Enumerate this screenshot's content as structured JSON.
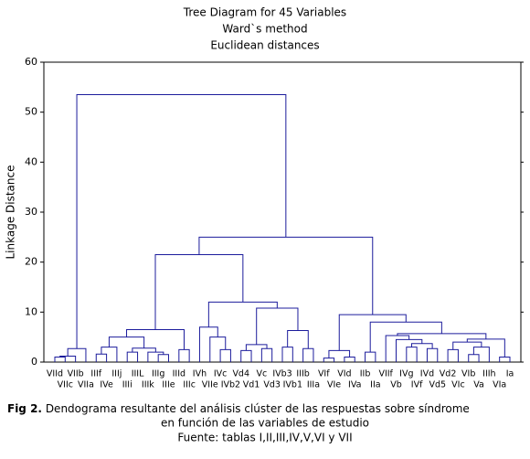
{
  "chart_data": {
    "type": "dendrogram",
    "title": [
      "Tree Diagram for 45  Variables",
      "Ward`s method",
      "Euclidean distances"
    ],
    "y_label": "Linkage Distance",
    "ylim": [
      0,
      60
    ],
    "yticks": [
      0,
      10,
      20,
      30,
      40,
      50,
      60
    ],
    "color": "#1c1c9c",
    "leaves": [
      "VIId",
      "VIIc",
      "VIIb",
      "VIIa",
      "IIIf",
      "IVe",
      "IIIj",
      "IIIi",
      "IIIL",
      "IIIk",
      "IIIg",
      "IIIe",
      "IIId",
      "IIIc",
      "IVh",
      "VIIe",
      "IVc",
      "IVb2",
      "Vd4",
      "Vd1",
      "Vc",
      "Vd3",
      "IVb3",
      "IVb1",
      "IIIb",
      "IIIa",
      "VIf",
      "VIe",
      "VId",
      "IVa",
      "IIb",
      "IIa",
      "VIIf",
      "Vb",
      "IVg",
      "IVf",
      "IVd",
      "Vd5",
      "Vd2",
      "VIc",
      "VIb",
      "Va",
      "IIIh",
      "VIa",
      "Ia"
    ],
    "merges": [
      {
        "left": 0,
        "right": 1,
        "height": 1.0
      },
      {
        "left": 45,
        "right": 2,
        "height": 1.2
      },
      {
        "left": 46,
        "right": 3,
        "height": 2.7
      },
      {
        "left": 4,
        "right": 5,
        "height": 1.6
      },
      {
        "left": 48,
        "right": 6,
        "height": 3.0
      },
      {
        "left": 7,
        "right": 8,
        "height": 2.0
      },
      {
        "left": 10,
        "right": 11,
        "height": 1.5
      },
      {
        "left": 9,
        "right": 51,
        "height": 2.0
      },
      {
        "left": 50,
        "right": 52,
        "height": 2.8
      },
      {
        "left": 49,
        "right": 53,
        "height": 5.0
      },
      {
        "left": 12,
        "right": 13,
        "height": 2.5
      },
      {
        "left": 54,
        "right": 55,
        "height": 6.5
      },
      {
        "left": 16,
        "right": 17,
        "height": 2.5
      },
      {
        "left": 15,
        "right": 57,
        "height": 5.0
      },
      {
        "left": 14,
        "right": 58,
        "height": 7.0
      },
      {
        "left": 18,
        "right": 19,
        "height": 2.3
      },
      {
        "left": 20,
        "right": 21,
        "height": 2.7
      },
      {
        "left": 60,
        "right": 61,
        "height": 3.5
      },
      {
        "left": 22,
        "right": 23,
        "height": 3.0
      },
      {
        "left": 24,
        "right": 25,
        "height": 2.7
      },
      {
        "left": 63,
        "right": 64,
        "height": 6.3
      },
      {
        "left": 62,
        "right": 65,
        "height": 10.8
      },
      {
        "left": 59,
        "right": 66,
        "height": 12.0
      },
      {
        "left": 56,
        "right": 67,
        "height": 21.5
      },
      {
        "left": 26,
        "right": 27,
        "height": 0.8
      },
      {
        "left": 28,
        "right": 29,
        "height": 1.0
      },
      {
        "left": 69,
        "right": 70,
        "height": 2.3
      },
      {
        "left": 30,
        "right": 31,
        "height": 2.0
      },
      {
        "left": 34,
        "right": 35,
        "height": 3.0
      },
      {
        "left": 36,
        "right": 37,
        "height": 2.7
      },
      {
        "left": 73,
        "right": 74,
        "height": 3.7
      },
      {
        "left": 33,
        "right": 75,
        "height": 4.5
      },
      {
        "left": 32,
        "right": 76,
        "height": 5.3
      },
      {
        "left": 38,
        "right": 39,
        "height": 2.5
      },
      {
        "left": 40,
        "right": 41,
        "height": 1.5
      },
      {
        "left": 79,
        "right": 42,
        "height": 3.0
      },
      {
        "left": 78,
        "right": 80,
        "height": 4.0
      },
      {
        "left": 43,
        "right": 44,
        "height": 1.0
      },
      {
        "left": 81,
        "right": 82,
        "height": 4.6
      },
      {
        "left": 77,
        "right": 83,
        "height": 5.7
      },
      {
        "left": 72,
        "right": 84,
        "height": 8.0
      },
      {
        "left": 71,
        "right": 85,
        "height": 9.5
      },
      {
        "left": 68,
        "right": 86,
        "height": 25.0
      },
      {
        "left": 47,
        "right": 87,
        "height": 53.5
      }
    ]
  },
  "caption": {
    "label": "Fig 2.",
    "text": " Dendograma resultante del análisis clúster de las respuestas sobre síndrome",
    "line2": "en función de las variables de estudio",
    "line3": "Fuente: tablas I,II,III,IV,V,VI y VII"
  }
}
